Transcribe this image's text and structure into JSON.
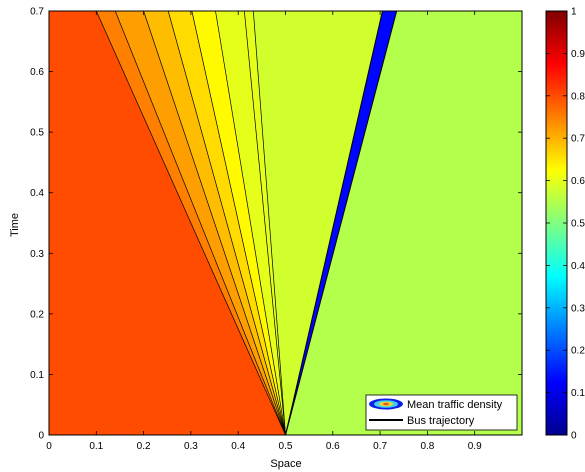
{
  "chart_data": {
    "type": "heatmap",
    "title": "",
    "xlabel": "Space",
    "ylabel": "Time",
    "xlim": [
      0,
      1
    ],
    "ylim": [
      0,
      0.7
    ],
    "x_ticks": [
      "0",
      "0.1",
      "0.2",
      "0.3",
      "0.4",
      "0.5",
      "0.6",
      "0.7",
      "0.8",
      "0.9"
    ],
    "y_ticks": [
      "0",
      "0.1",
      "0.2",
      "0.3",
      "0.4",
      "0.5",
      "0.6",
      "0.7"
    ],
    "colorbar": {
      "range": [
        0,
        1
      ],
      "ticks": [
        "0",
        "0.1",
        "0.2",
        "0.3",
        "0.4",
        "0.5",
        "0.6",
        "0.7",
        "0.8",
        "0.9",
        "1"
      ],
      "colormap": "jet"
    },
    "background_left_value": 0.8,
    "background_right_value": 0.55,
    "fan": {
      "origin": [
        0.5,
        0
      ],
      "top_x_boundaries": [
        0.1,
        0.14,
        0.2,
        0.252,
        0.302,
        0.352,
        0.413,
        0.432
      ],
      "levels": [
        0.75,
        0.72,
        0.69,
        0.66,
        0.63,
        0.6,
        0.6
      ],
      "wedge_top_x": 0.43,
      "wedge_right_top_x": 0.707,
      "wedge_value": 0.58
    },
    "bus_band": {
      "top_left_x": 0.705,
      "top_right_x": 0.735,
      "value": 0.13
    },
    "legend": {
      "position": "bottom-right",
      "entries": [
        "Mean traffic density",
        "Bus trajectory"
      ]
    }
  }
}
